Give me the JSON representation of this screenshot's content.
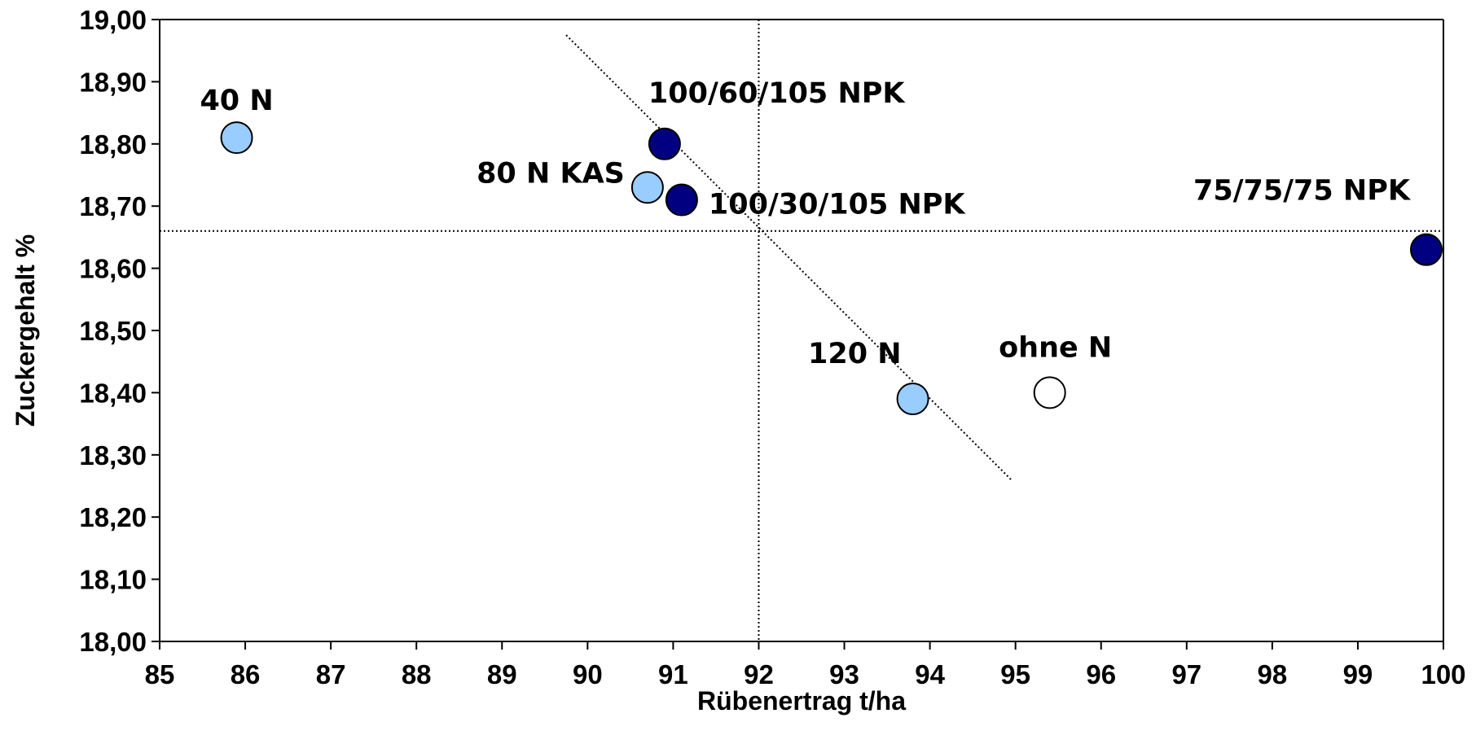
{
  "chart_data": {
    "type": "scatter",
    "title": "",
    "xlabel": "Rübenertrag t/ha",
    "ylabel": "Zuckergehalt %",
    "xlim": [
      85,
      100
    ],
    "ylim": [
      18.0,
      19.0
    ],
    "x_ticks": [
      "85",
      "86",
      "87",
      "88",
      "89",
      "90",
      "91",
      "92",
      "93",
      "94",
      "95",
      "96",
      "97",
      "98",
      "99",
      "100"
    ],
    "y_ticks": [
      "18,00",
      "18,10",
      "18,20",
      "18,30",
      "18,40",
      "18,50",
      "18,60",
      "18,70",
      "18,80",
      "18,90",
      "19,00"
    ],
    "grid": false,
    "points": [
      {
        "label": "40 N",
        "x": 85.9,
        "y": 18.81,
        "color": "#99ccff"
      },
      {
        "label": "80 N KAS",
        "x": 90.7,
        "y": 18.73,
        "color": "#99ccff"
      },
      {
        "label": "120 N",
        "x": 93.8,
        "y": 18.39,
        "color": "#99ccff"
      },
      {
        "label": "100/60/105 NPK",
        "x": 90.9,
        "y": 18.8,
        "color": "#000080"
      },
      {
        "label": "100/30/105 NPK",
        "x": 91.1,
        "y": 18.71,
        "color": "#000080"
      },
      {
        "label": "75/75/75 NPK",
        "x": 99.8,
        "y": 18.63,
        "color": "#000080"
      },
      {
        "label": "ohne N",
        "x": 95.4,
        "y": 18.4,
        "color": "#ffffff"
      }
    ],
    "reference_lines": {
      "vertical_x": 92.0,
      "horizontal_y": 18.66
    },
    "trend_line": {
      "x": [
        89.75,
        94.95
      ],
      "y": [
        18.975,
        18.26
      ]
    }
  }
}
